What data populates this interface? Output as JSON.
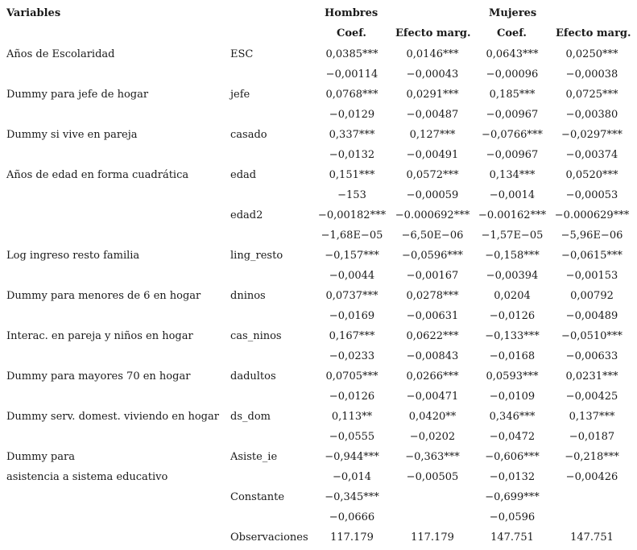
{
  "header": {
    "variables": "Variables",
    "hombres": "Hombres",
    "mujeres": "Mujeres",
    "coef": "Coef.",
    "efecto": "Efecto marg."
  },
  "rows": [
    {
      "desc": "Años de Escolaridad",
      "var": "ESC",
      "c1": "0,0385***",
      "c2": "0,0146***",
      "c3": "0,0643***",
      "c4": "0,0250***"
    },
    {
      "desc": "",
      "var": "",
      "c1": "−0,00114",
      "c2": "−0,00043",
      "c3": "−0,00096",
      "c4": "−0,00038"
    },
    {
      "desc": "Dummy para jefe de hogar",
      "var": "jefe",
      "c1": "0,0768***",
      "c2": "0,0291***",
      "c3": "0,185***",
      "c4": "0,0725***"
    },
    {
      "desc": "",
      "var": "",
      "c1": "−0,0129",
      "c2": "−0,00487",
      "c3": "−0,00967",
      "c4": "−0,00380"
    },
    {
      "desc": "Dummy si vive en pareja",
      "var": "casado",
      "c1": "0,337***",
      "c2": "0,127***",
      "c3": "−0,0766***",
      "c4": "−0,0297***"
    },
    {
      "desc": "",
      "var": "",
      "c1": "−0,0132",
      "c2": "−0,00491",
      "c3": "−0,00967",
      "c4": "−0,00374"
    },
    {
      "desc": "Años de edad en forma cuadrática",
      "var": "edad",
      "c1": "0,151***",
      "c2": "0,0572***",
      "c3": "0,134***",
      "c4": "0,0520***"
    },
    {
      "desc": "",
      "var": "",
      "c1": "−153",
      "c2": "−0,00059",
      "c3": "−0,0014",
      "c4": "−0,00053"
    },
    {
      "desc": "",
      "var": "edad2",
      "c1": "−0,00182***",
      "c2": "−0.000692***",
      "c3": "−0.00162***",
      "c4": "−0.000629***"
    },
    {
      "desc": "",
      "var": "",
      "c1": "−1,68E−05",
      "c2": "−6,50E−06",
      "c3": "−1,57E−05",
      "c4": "−5,96E−06"
    },
    {
      "desc": "Log ingreso resto familia",
      "var": "ling_resto",
      "c1": "−0,157***",
      "c2": "−0,0596***",
      "c3": "−0,158***",
      "c4": "−0,0615***"
    },
    {
      "desc": "",
      "var": "",
      "c1": "−0,0044",
      "c2": "−0,00167",
      "c3": "−0,00394",
      "c4": "−0,00153"
    },
    {
      "desc": "Dummy para menores de 6 en hogar",
      "var": "dninos",
      "c1": "0,0737***",
      "c2": "0,0278***",
      "c3": "0,0204",
      "c4": "0,00792"
    },
    {
      "desc": "",
      "var": "",
      "c1": "−0,0169",
      "c2": "−0,00631",
      "c3": "−0,0126",
      "c4": "−0,00489"
    },
    {
      "desc": "Interac. en pareja y niños en hogar",
      "var": "cas_ninos",
      "c1": "0,167***",
      "c2": "0,0622***",
      "c3": "−0,133***",
      "c4": "−0,0510***"
    },
    {
      "desc": "",
      "var": "",
      "c1": "−0,0233",
      "c2": "−0,00843",
      "c3": "−0,0168",
      "c4": "−0,00633"
    },
    {
      "desc": "Dummy para mayores 70 en hogar",
      "var": "dadultos",
      "c1": "0,0705***",
      "c2": "0,0266***",
      "c3": "0,0593***",
      "c4": "0,0231***"
    },
    {
      "desc": "",
      "var": "",
      "c1": "−0,0126",
      "c2": "−0,00471",
      "c3": "−0,0109",
      "c4": "−0,00425"
    },
    {
      "desc": "Dummy serv. domest. viviendo en hogar",
      "var": "ds_dom",
      "c1": "0,113**",
      "c2": "0,0420**",
      "c3": "0,346***",
      "c4": "0,137***"
    },
    {
      "desc": "",
      "var": "",
      "c1": "−0,0555",
      "c2": "−0,0202",
      "c3": "−0,0472",
      "c4": "−0,0187"
    },
    {
      "desc": "Dummy para",
      "var": "Asiste_ie",
      "c1": "−0,944***",
      "c2": "−0,363***",
      "c3": "−0,606***",
      "c4": "−0,218***"
    },
    {
      "desc": "asistencia a sistema educativo",
      "var": "",
      "c1": "−0,014",
      "c2": "−0,00505",
      "c3": "−0,0132",
      "c4": "−0,00426"
    },
    {
      "desc": "",
      "var": "Constante",
      "c1": "−0,345***",
      "c2": "",
      "c3": "−0,699***",
      "c4": ""
    },
    {
      "desc": "",
      "var": "",
      "c1": "−0,0666",
      "c2": "",
      "c3": "−0,0596",
      "c4": ""
    },
    {
      "desc": "",
      "var": "Observaciones",
      "c1": "117.179",
      "c2": "117.179",
      "c3": "147.751",
      "c4": "147.751"
    }
  ]
}
